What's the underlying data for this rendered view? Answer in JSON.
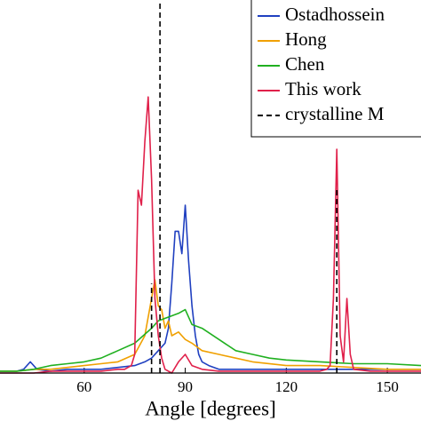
{
  "chart_data": {
    "type": "line",
    "xlabel": "Angle [degrees]",
    "xlim": [
      35,
      160
    ],
    "xticks": [
      60,
      90,
      120,
      150
    ],
    "ylim": [
      0,
      1
    ],
    "legend": "upper right",
    "series": [
      {
        "name": "Ostadhossein",
        "color": "#2040c0",
        "style": "solid",
        "x": [
          35,
          40,
          42,
          44,
          46,
          50,
          55,
          60,
          65,
          70,
          75,
          78,
          80,
          82,
          84,
          85,
          86,
          87,
          88,
          89,
          90,
          91,
          92,
          93,
          94,
          95,
          97,
          100,
          105,
          110,
          120,
          130,
          140,
          150,
          160
        ],
        "values": [
          0.005,
          0.005,
          0.01,
          0.03,
          0.01,
          0.005,
          0.01,
          0.01,
          0.01,
          0.015,
          0.02,
          0.03,
          0.04,
          0.06,
          0.08,
          0.12,
          0.24,
          0.38,
          0.38,
          0.32,
          0.45,
          0.3,
          0.18,
          0.1,
          0.05,
          0.03,
          0.02,
          0.01,
          0.01,
          0.01,
          0.01,
          0.01,
          0.01,
          0.01,
          0.01
        ]
      },
      {
        "name": "Hong",
        "color": "#f0a000",
        "style": "solid",
        "x": [
          35,
          40,
          45,
          50,
          55,
          60,
          65,
          70,
          75,
          78,
          80,
          81,
          82,
          83,
          84,
          85,
          86,
          88,
          90,
          92,
          95,
          100,
          105,
          110,
          120,
          130,
          140,
          150,
          160
        ],
        "values": [
          0.005,
          0.005,
          0.01,
          0.01,
          0.015,
          0.02,
          0.025,
          0.03,
          0.05,
          0.1,
          0.2,
          0.25,
          0.18,
          0.17,
          0.12,
          0.14,
          0.1,
          0.11,
          0.09,
          0.08,
          0.06,
          0.05,
          0.04,
          0.03,
          0.02,
          0.02,
          0.015,
          0.01,
          0.01
        ]
      },
      {
        "name": "Chen",
        "color": "#20b020",
        "style": "solid",
        "x": [
          35,
          40,
          45,
          50,
          55,
          60,
          65,
          70,
          75,
          80,
          82,
          85,
          88,
          90,
          92,
          95,
          100,
          105,
          110,
          115,
          120,
          130,
          140,
          150,
          160
        ],
        "values": [
          0.005,
          0.005,
          0.01,
          0.02,
          0.025,
          0.03,
          0.04,
          0.06,
          0.08,
          0.12,
          0.14,
          0.15,
          0.16,
          0.17,
          0.13,
          0.12,
          0.09,
          0.06,
          0.05,
          0.04,
          0.035,
          0.03,
          0.025,
          0.025,
          0.02
        ]
      },
      {
        "name": "This work",
        "color": "#e0204a",
        "style": "solid",
        "x": [
          35,
          40,
          45,
          50,
          55,
          60,
          65,
          70,
          72,
          74,
          75,
          76,
          77,
          78,
          79,
          80,
          81,
          82,
          83,
          84,
          86,
          88,
          90,
          92,
          95,
          100,
          110,
          120,
          130,
          132,
          133,
          134,
          135,
          136,
          137,
          138,
          139,
          140,
          145,
          150,
          160
        ],
        "values": [
          0,
          0,
          0,
          0.005,
          0.005,
          0.005,
          0.005,
          0.01,
          0.01,
          0.02,
          0.05,
          0.49,
          0.45,
          0.62,
          0.74,
          0.52,
          0.2,
          0.1,
          0.04,
          0.01,
          0,
          0.03,
          0.05,
          0.02,
          0.01,
          0.005,
          0.005,
          0.005,
          0.005,
          0.01,
          0.02,
          0.2,
          0.6,
          0.1,
          0.03,
          0.2,
          0.05,
          0.01,
          0.005,
          0.005,
          0.005
        ]
      },
      {
        "name": "crystalline M",
        "color": "#000000",
        "style": "dashed",
        "x": [
          80,
          82.5,
          135
        ],
        "values": [
          0.24,
          1,
          0.5
        ]
      }
    ]
  }
}
